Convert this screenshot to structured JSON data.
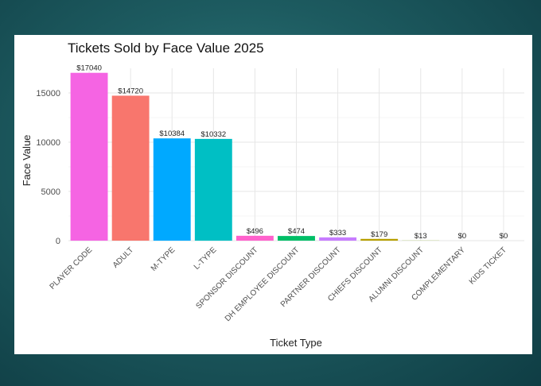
{
  "chart_data": {
    "type": "bar",
    "title": "Tickets Sold by Face Value 2025",
    "xlabel": "Ticket Type",
    "ylabel": "Face Value",
    "ylim": [
      0,
      17500
    ],
    "yticks": [
      0,
      5000,
      10000,
      15000
    ],
    "grid": true,
    "legend": "none",
    "categories": [
      "PLAYER CODE",
      "ADULT",
      "M-TYPE",
      "L-TYPE",
      "SPONSOR DISCOUNT",
      "DH EMPLOYEE DISCOUNT",
      "PARTNER DISCOUNT",
      "CHIEFS DISCOUNT",
      "ALUMNI DISCOUNT",
      "COMPLEMENTARY",
      "KIDS TICKET"
    ],
    "values": [
      17040,
      14720,
      10384,
      10332,
      496,
      474,
      333,
      179,
      13,
      0,
      0
    ],
    "data_labels": [
      "$17040",
      "$14720",
      "$10384",
      "$10332",
      "$496",
      "$474",
      "$333",
      "$179",
      "$13",
      "$0",
      "$0"
    ],
    "colors": [
      "#F564E3",
      "#F8766D",
      "#00A9FF",
      "#00BFC4",
      "#FF61CC",
      "#00BE67",
      "#C77CFF",
      "#B79F00",
      "#7CAE00",
      "#00C19A",
      "#CD9600"
    ]
  }
}
